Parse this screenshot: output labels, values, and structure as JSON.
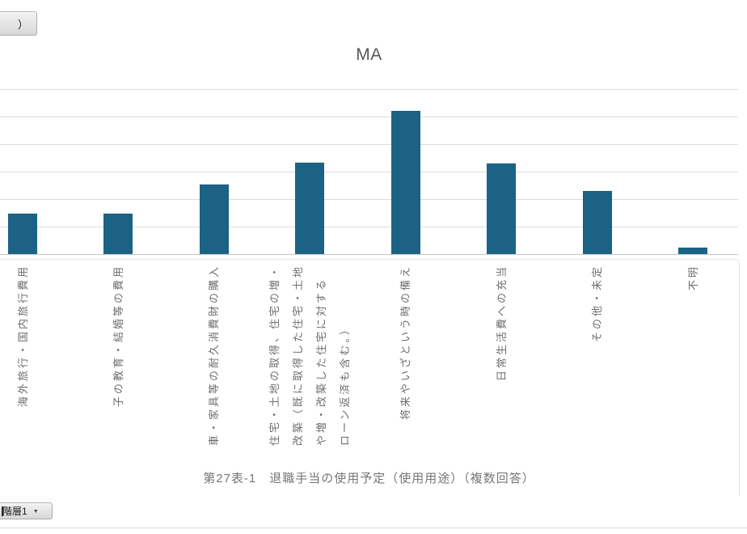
{
  "chart_data": {
    "type": "bar",
    "title": "MA",
    "categories": [
      "海外旅行・国内旅行費用",
      "子の教育・結婚等の費用",
      "車・家具等の耐久消費財の購入",
      "住宅・土地の取得、住宅の増・改築（既に取得した住宅・土地や増・改築した住宅に対するローン返済も含む。）",
      "将来やいざという時の備え",
      "日常生活費への充当",
      "その他・未定",
      "不明"
    ],
    "categories_display_lines": [
      [
        "海外旅行・国内旅行費用"
      ],
      [
        "子の教育・結婚等の費用"
      ],
      [
        "車・家具等の耐久消費財の購入"
      ],
      [
        "住宅・土地の取得、住宅の増・",
        "改築（既に取得した住宅・土地",
        "や増・改築した住宅に対する",
        "ローン返済も含む。）"
      ],
      [
        "将来やいざという時の備え"
      ],
      [
        "日常生活費への充当"
      ],
      [
        "その他・未定"
      ],
      [
        "不明"
      ]
    ],
    "values": [
      14.8,
      14.8,
      25.3,
      33.3,
      52.2,
      32.8,
      23.0,
      2.4
    ],
    "xlabel": "",
    "ylabel": "",
    "ylim": [
      0,
      60
    ],
    "grid": "horizontal",
    "legend": "none",
    "caption": "第27表-1　退職手当の使用予定（使用用途）（複数回答）"
  },
  "pivot_buttons": {
    "top_left_label": "）",
    "bottom_left_label": "階層1",
    "dropdown_arrow": "▼"
  },
  "colors": {
    "bar": "#1B6285",
    "gridline": "#DBDBDB",
    "axis_line": "#C6C6C6",
    "label_box_border": "#E5E5E5",
    "title_text": "#595959",
    "category_text": "#6E6E6E",
    "caption_text": "#767676"
  }
}
